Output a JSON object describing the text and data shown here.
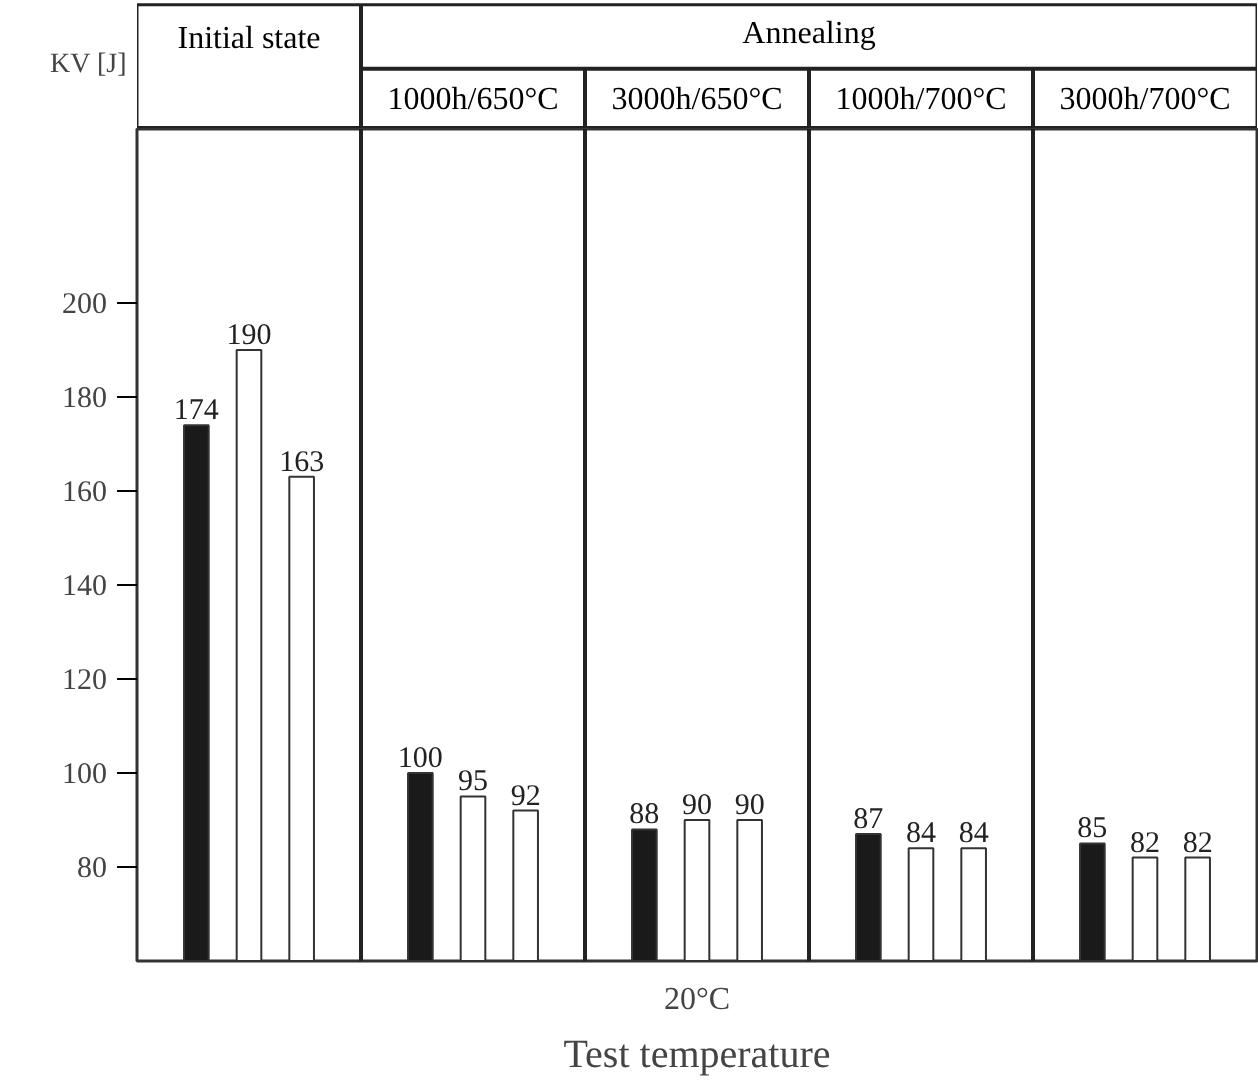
{
  "chart_data": {
    "type": "bar",
    "ylabel": "KV [J]",
    "xlabel": "Test temperature",
    "categories": [
      "Initial state",
      "1000h/650°C",
      "3000h/650°C",
      "1000h/700°C",
      "3000h/700°C"
    ],
    "series": [
      {
        "color": "#1a1a1a",
        "values": [
          174,
          100,
          88,
          87,
          85
        ]
      },
      {
        "color": "#ffffff",
        "values": [
          190,
          95,
          90,
          84,
          82
        ]
      },
      {
        "color": "#ffffff",
        "values": [
          163,
          92,
          90,
          84,
          82
        ]
      }
    ],
    "annotations": [
      "Annealing",
      "20°C"
    ],
    "ylim": [
      60,
      237
    ],
    "yticks": [
      80,
      100,
      120,
      140,
      160,
      180,
      200
    ],
    "data_labels": true,
    "grid": "x",
    "legend": false
  }
}
